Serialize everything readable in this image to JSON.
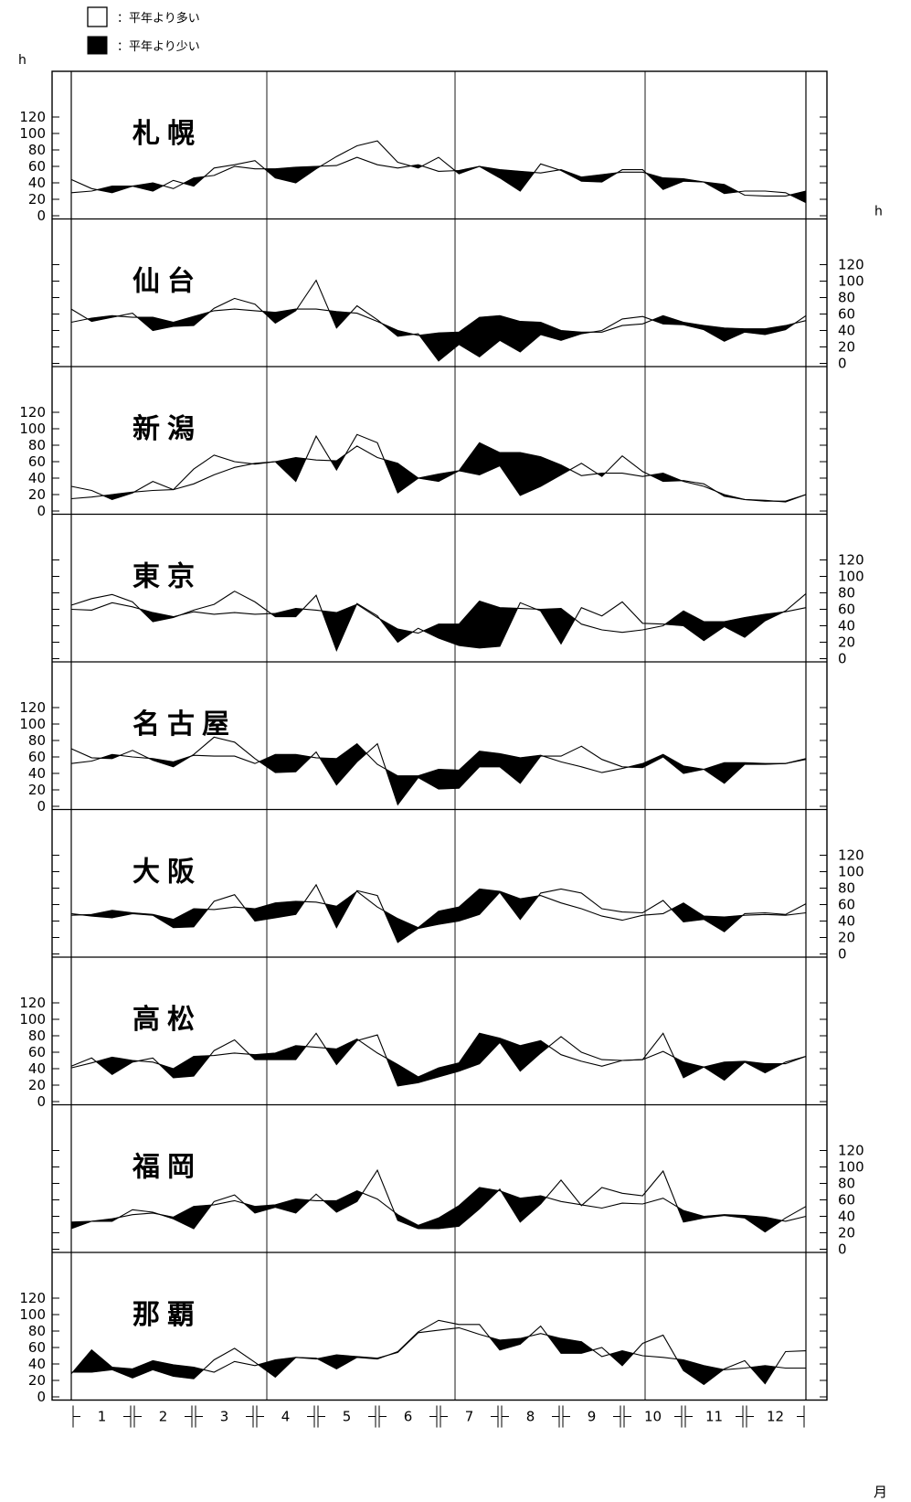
{
  "legend": [
    {
      "swatch": "white",
      "text": "：平年より多い"
    },
    {
      "swatch": "black",
      "text": "：平年より少い"
    }
  ],
  "axis": {
    "y_unit": "h",
    "y_ticks": [
      "0",
      "20",
      "40",
      "60",
      "80",
      "100",
      "120"
    ],
    "month_unit": "月",
    "months": [
      "1",
      "2",
      "3",
      "4",
      "5",
      "6",
      "7",
      "8",
      "9",
      "10",
      "11",
      "12"
    ]
  },
  "colors": {
    "above_normal": "#ffffff",
    "below_normal": "#000000",
    "line": "#000000"
  },
  "chart_data": {
    "type": "area",
    "description_of_encoding": "",
    "x": [
      "1-1",
      "1-2",
      "1-3",
      "2-1",
      "2-2",
      "2-3",
      "3-1",
      "3-2",
      "3-3",
      "4-1",
      "4-2",
      "4-3",
      "5-1",
      "5-2",
      "5-3",
      "6-1",
      "6-2",
      "6-3",
      "7-1",
      "7-2",
      "7-3",
      "8-1",
      "8-2",
      "8-3",
      "9-1",
      "9-2",
      "9-3",
      "10-1",
      "10-2",
      "10-3",
      "11-1",
      "11-2",
      "11-3",
      "12-1",
      "12-2",
      "12-3",
      "12-end"
    ],
    "ylim": [
      0,
      130
    ],
    "panels": [
      {
        "name": "札幌",
        "axis_side": "left",
        "series": [
          {
            "name": "",
            "values": [
              44,
              33,
              28,
              36,
              30,
              43,
              36,
              58,
              62,
              67,
              46,
              40,
              57,
              72,
              85,
              91,
              65,
              58,
              71,
              51,
              60,
              46,
              30,
              63,
              55,
              42,
              41,
              56,
              56,
              32,
              42,
              41,
              27,
              30,
              30,
              28,
              16
            ]
          },
          {
            "name": "",
            "values": [
              28,
              30,
              36,
              36,
              40,
              33,
              46,
              49,
              60,
              57,
              57,
              59,
              60,
              61,
              71,
              62,
              58,
              62,
              54,
              55,
              60,
              56,
              54,
              52,
              56,
              47,
              50,
              53,
              53,
              46,
              45,
              41,
              38,
              25,
              24,
              24,
              30
            ]
          }
        ]
      },
      {
        "name": "仙台",
        "axis_side": "right",
        "series": [
          {
            "name": "",
            "values": [
              66,
              51,
              56,
              61,
              40,
              45,
              46,
              67,
              79,
              72,
              49,
              64,
              101,
              43,
              70,
              53,
              33,
              36,
              3,
              23,
              8,
              28,
              14,
              35,
              28,
              36,
              40,
              54,
              57,
              48,
              47,
              41,
              27,
              38,
              35,
              41,
              58
            ]
          },
          {
            "name": "",
            "values": [
              50,
              55,
              58,
              56,
              56,
              50,
              57,
              64,
              66,
              64,
              62,
              66,
              66,
              63,
              61,
              51,
              40,
              34,
              37,
              38,
              56,
              58,
              51,
              50,
              40,
              38,
              38,
              46,
              48,
              58,
              50,
              46,
              43,
              42,
              42,
              46,
              52
            ]
          }
        ]
      },
      {
        "name": "新潟",
        "axis_side": "left",
        "series": [
          {
            "name": "",
            "values": [
              30,
              25,
              14,
              22,
              36,
              26,
              51,
              68,
              60,
              57,
              60,
              36,
              91,
              50,
              93,
              83,
              22,
              40,
              36,
              49,
              44,
              55,
              19,
              30,
              44,
              58,
              42,
              67,
              48,
              36,
              37,
              33,
              18,
              14,
              12,
              12,
              20
            ]
          },
          {
            "name": "",
            "values": [
              15,
              17,
              20,
              23,
              25,
              26,
              33,
              44,
              53,
              58,
              60,
              65,
              62,
              61,
              79,
              65,
              58,
              40,
              45,
              49,
              83,
              71,
              71,
              66,
              56,
              43,
              46,
              46,
              42,
              46,
              36,
              30,
              20,
              14,
              13,
              11,
              20
            ]
          }
        ]
      },
      {
        "name": "東京",
        "axis_side": "right",
        "series": [
          {
            "name": "",
            "values": [
              65,
              73,
              78,
              69,
              45,
              50,
              59,
              66,
              82,
              69,
              51,
              51,
              77,
              10,
              67,
              52,
              20,
              37,
              25,
              16,
              13,
              15,
              68,
              58,
              18,
              62,
              52,
              69,
              43,
              42,
              40,
              22,
              39,
              26,
              46,
              58,
              79
            ]
          },
          {
            "name": "",
            "values": [
              60,
              59,
              68,
              63,
              56,
              51,
              57,
              54,
              56,
              54,
              55,
              61,
              59,
              56,
              66,
              50,
              36,
              31,
              42,
              42,
              70,
              62,
              61,
              60,
              61,
              42,
              35,
              32,
              35,
              40,
              58,
              45,
              45,
              50,
              54,
              57,
              62
            ]
          }
        ]
      },
      {
        "name": "名古屋",
        "axis_side": "left",
        "series": [
          {
            "name": "",
            "values": [
              70,
              59,
              58,
              68,
              56,
              48,
              63,
              84,
              78,
              58,
              41,
              42,
              66,
              26,
              54,
              76,
              2,
              35,
              21,
              22,
              48,
              48,
              28,
              61,
              61,
              73,
              57,
              48,
              47,
              60,
              40,
              45,
              28,
              51,
              51,
              52,
              57
            ]
          },
          {
            "name": "",
            "values": [
              52,
              55,
              63,
              60,
              58,
              54,
              62,
              61,
              61,
              52,
              63,
              63,
              59,
              58,
              76,
              51,
              37,
              37,
              45,
              44,
              67,
              64,
              59,
              62,
              54,
              48,
              41,
              46,
              52,
              63,
              49,
              45,
              53,
              53,
              52,
              52,
              58
            ]
          }
        ]
      },
      {
        "name": "大阪",
        "axis_side": "right",
        "series": [
          {
            "name": "",
            "values": [
              49,
              46,
              44,
              49,
              47,
              32,
              33,
              64,
              72,
              40,
              44,
              48,
              84,
              32,
              77,
              71,
              14,
              31,
              36,
              40,
              48,
              75,
              42,
              74,
              79,
              74,
              55,
              51,
              50,
              65,
              39,
              42,
              27,
              49,
              50,
              48,
              61
            ]
          },
          {
            "name": "",
            "values": [
              47,
              48,
              53,
              50,
              48,
              42,
              55,
              54,
              57,
              55,
              62,
              64,
              63,
              58,
              76,
              57,
              43,
              32,
              52,
              57,
              79,
              76,
              67,
              71,
              62,
              55,
              46,
              41,
              47,
              49,
              62,
              46,
              45,
              47,
              48,
              47,
              50
            ]
          }
        ]
      },
      {
        "name": "高松",
        "axis_side": "left",
        "series": [
          {
            "name": "",
            "values": [
              43,
              53,
              33,
              48,
              53,
              29,
              31,
              62,
              75,
              51,
              51,
              51,
              83,
              45,
              74,
              81,
              19,
              23,
              30,
              37,
              46,
              72,
              37,
              59,
              79,
              60,
              51,
              50,
              51,
              83,
              29,
              42,
              26,
              48,
              35,
              48,
              55
            ]
          },
          {
            "name": "",
            "values": [
              41,
              47,
              54,
              50,
              48,
              40,
              55,
              56,
              59,
              57,
              59,
              68,
              66,
              64,
              76,
              59,
              45,
              30,
              41,
              47,
              83,
              77,
              68,
              74,
              57,
              49,
              43,
              50,
              51,
              61,
              48,
              42,
              48,
              49,
              46,
              46,
              55
            ]
          }
        ]
      },
      {
        "name": "福岡",
        "axis_side": "right",
        "series": [
          {
            "name": "",
            "values": [
              25,
              34,
              34,
              48,
              45,
              37,
              25,
              58,
              66,
              44,
              51,
              44,
              67,
              45,
              58,
              96,
              35,
              25,
              25,
              28,
              49,
              73,
              33,
              55,
              84,
              53,
              75,
              68,
              65,
              95,
              33,
              38,
              41,
              38,
              21,
              38,
              52
            ]
          },
          {
            "name": "",
            "values": [
              33,
              34,
              37,
              42,
              44,
              39,
              52,
              54,
              59,
              52,
              54,
              61,
              59,
              59,
              71,
              61,
              42,
              29,
              38,
              53,
              75,
              71,
              62,
              65,
              58,
              54,
              50,
              56,
              55,
              62,
              47,
              40,
              42,
              41,
              39,
              34,
              40
            ]
          }
        ]
      },
      {
        "name": "那覇",
        "axis_side": "left",
        "series": [
          {
            "name": "",
            "values": [
              30,
              30,
              33,
              23,
              33,
              25,
              22,
              45,
              59,
              42,
              24,
              48,
              47,
              34,
              48,
              46,
              55,
              79,
              93,
              88,
              88,
              57,
              64,
              86,
              53,
              53,
              60,
              38,
              65,
              75,
              32,
              15,
              34,
              44,
              16,
              55,
              56
            ]
          },
          {
            "name": "",
            "values": [
              28,
              57,
              36,
              34,
              44,
              39,
              36,
              30,
              43,
              38,
              45,
              48,
              46,
              51,
              49,
              47,
              54,
              78,
              81,
              84,
              76,
              69,
              71,
              77,
              71,
              67,
              49,
              56,
              50,
              48,
              45,
              38,
              33,
              35,
              38,
              35,
              35
            ]
          }
        ]
      }
    ]
  }
}
